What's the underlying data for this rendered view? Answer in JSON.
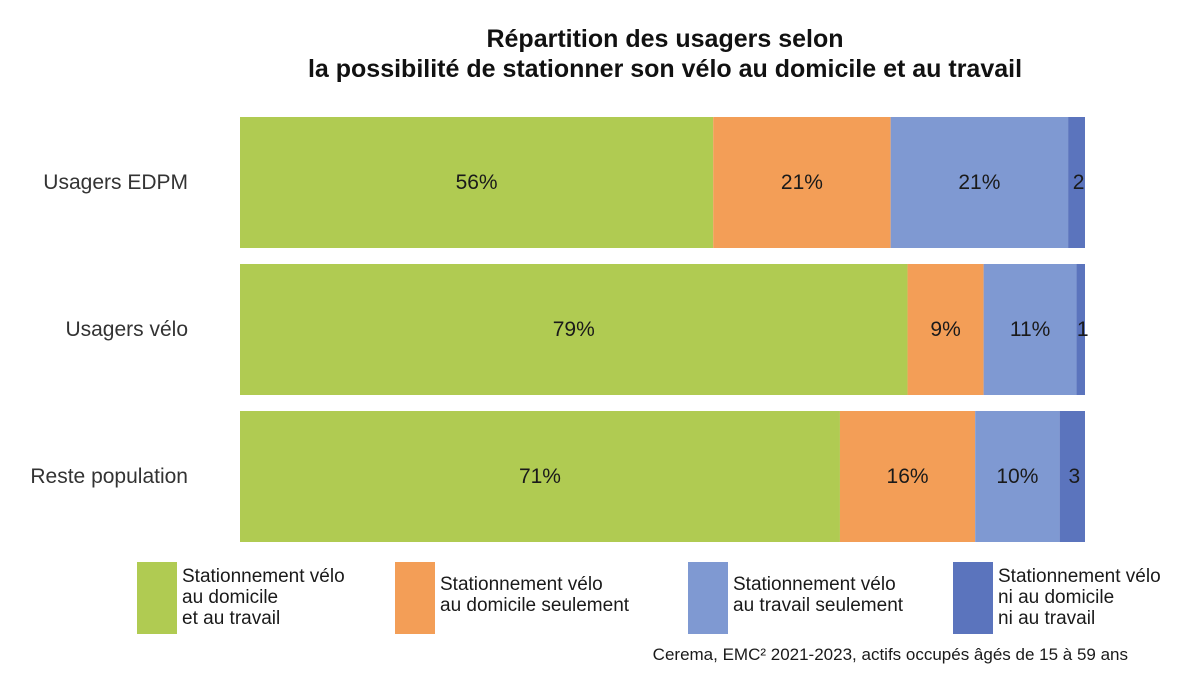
{
  "chart_data": {
    "type": "bar",
    "orientation": "horizontal",
    "stacked": true,
    "normalized_percent": true,
    "title": "Répartition des usagers selon la possibilité de stationner son vélo au domicile et au travail",
    "title_lines": [
      "Répartition des usagers selon",
      "la possibilité de stationner son vélo au domicile et au travail"
    ],
    "categories": [
      "Usagers EDPM",
      "Usagers vélo",
      "Reste population"
    ],
    "series": [
      {
        "name": "Stationnement vélo au domicile et au travail",
        "name_lines": [
          "Stationnement vélo",
          "au domicile",
          "et au travail"
        ],
        "color": "#b0cb52",
        "values": [
          56,
          79,
          71
        ],
        "labels": [
          "56%",
          "79%",
          "71%"
        ]
      },
      {
        "name": "Stationnement vélo au domicile seulement",
        "name_lines": [
          "Stationnement vélo",
          "au domicile seulement"
        ],
        "color": "#f39e57",
        "values": [
          21,
          9,
          16
        ],
        "labels": [
          "21%",
          "9%",
          "16%"
        ]
      },
      {
        "name": "Stationnement vélo au travail seulement",
        "name_lines": [
          "Stationnement vélo",
          "au travail seulement"
        ],
        "color": "#7f99d2",
        "values": [
          21,
          11,
          10
        ],
        "labels": [
          "21%",
          "11%",
          "10%"
        ]
      },
      {
        "name": "Stationnement vélo ni au domicile ni au travail",
        "name_lines": [
          "Stationnement vélo",
          "ni au domicile",
          "ni au travail"
        ],
        "color": "#5b74bd",
        "values": [
          2,
          1,
          3
        ],
        "labels": [
          "2",
          "1",
          "3"
        ]
      }
    ],
    "xlim": [
      0,
      100
    ],
    "grid": false,
    "legend_position": "bottom",
    "source": "Cerema, EMC² 2021-2023, actifs occupés âgés de 15 à 59 ans"
  }
}
